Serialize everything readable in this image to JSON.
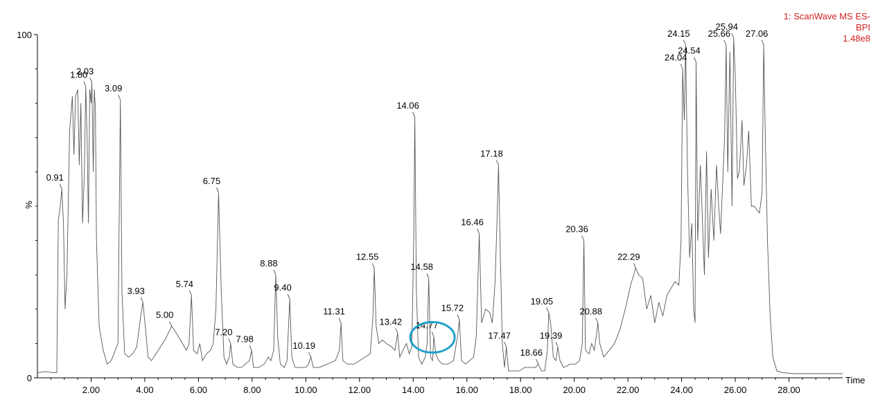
{
  "chart_data": {
    "type": "line",
    "xlabel": "Time",
    "ylabel": "%",
    "xlim": [
      0,
      30
    ],
    "ylim": [
      0,
      100
    ],
    "x_ticks": [
      "2.00",
      "4.00",
      "6.00",
      "8.00",
      "10.00",
      "12.00",
      "14.00",
      "16.00",
      "18.00",
      "20.00",
      "22.00",
      "24.00",
      "26.00",
      "28.00"
    ],
    "y_ticks": [
      "0",
      "100"
    ],
    "annotation": {
      "lines": [
        "1: ScanWave MS ES-",
        "BPI",
        "1.48e8"
      ],
      "color": "#d32020"
    },
    "highlight_circle": {
      "x": 14.77,
      "y": 13,
      "color": "#1fa0c8"
    },
    "peaks": [
      {
        "label": "0.91",
        "x": 0.91,
        "y": 55
      },
      {
        "label": "1.80",
        "x": 1.8,
        "y": 85
      },
      {
        "label": "2.03",
        "x": 2.03,
        "y": 86
      },
      {
        "label": "3.09",
        "x": 3.09,
        "y": 81
      },
      {
        "label": "3.93",
        "x": 3.93,
        "y": 22
      },
      {
        "label": "5.00",
        "x": 5.0,
        "y": 15
      },
      {
        "label": "5.74",
        "x": 5.74,
        "y": 24
      },
      {
        "label": "6.75",
        "x": 6.75,
        "y": 54
      },
      {
        "label": "7.20",
        "x": 7.2,
        "y": 10
      },
      {
        "label": "7.98",
        "x": 7.98,
        "y": 8
      },
      {
        "label": "8.88",
        "x": 8.88,
        "y": 30
      },
      {
        "label": "9.40",
        "x": 9.4,
        "y": 23
      },
      {
        "label": "10.19",
        "x": 10.19,
        "y": 6
      },
      {
        "label": "11.31",
        "x": 11.31,
        "y": 16
      },
      {
        "label": "12.55",
        "x": 12.55,
        "y": 32
      },
      {
        "label": "13.42",
        "x": 13.42,
        "y": 13
      },
      {
        "label": "14.06",
        "x": 14.06,
        "y": 76
      },
      {
        "label": "14.58",
        "x": 14.58,
        "y": 29
      },
      {
        "label": "14.77",
        "x": 14.77,
        "y": 12
      },
      {
        "label": "15.72",
        "x": 15.72,
        "y": 17
      },
      {
        "label": "16.46",
        "x": 16.46,
        "y": 42
      },
      {
        "label": "17.18",
        "x": 17.18,
        "y": 62
      },
      {
        "label": "17.47",
        "x": 17.47,
        "y": 9
      },
      {
        "label": "18.66",
        "x": 18.66,
        "y": 4
      },
      {
        "label": "19.05",
        "x": 19.05,
        "y": 19
      },
      {
        "label": "19.39",
        "x": 19.39,
        "y": 9
      },
      {
        "label": "20.36",
        "x": 20.36,
        "y": 40
      },
      {
        "label": "20.88",
        "x": 20.88,
        "y": 16
      },
      {
        "label": "22.29",
        "x": 22.29,
        "y": 32
      },
      {
        "label": "24.04",
        "x": 24.04,
        "y": 90
      },
      {
        "label": "24.15",
        "x": 24.15,
        "y": 97
      },
      {
        "label": "24.54",
        "x": 24.54,
        "y": 92
      },
      {
        "label": "25.66",
        "x": 25.66,
        "y": 97
      },
      {
        "label": "25.94",
        "x": 25.94,
        "y": 99
      },
      {
        "label": "27.06",
        "x": 27.06,
        "y": 97
      }
    ],
    "trace": [
      [
        0.0,
        1.5
      ],
      [
        0.3,
        1.8
      ],
      [
        0.6,
        1.5
      ],
      [
        0.72,
        1.5
      ],
      [
        0.78,
        46
      ],
      [
        0.85,
        50
      ],
      [
        0.91,
        55
      ],
      [
        0.97,
        45
      ],
      [
        1.03,
        20
      ],
      [
        1.1,
        30
      ],
      [
        1.2,
        72
      ],
      [
        1.3,
        82
      ],
      [
        1.36,
        65
      ],
      [
        1.42,
        82
      ],
      [
        1.5,
        84
      ],
      [
        1.56,
        62
      ],
      [
        1.62,
        80
      ],
      [
        1.68,
        45
      ],
      [
        1.75,
        60
      ],
      [
        1.8,
        85
      ],
      [
        1.85,
        70
      ],
      [
        1.9,
        45
      ],
      [
        1.95,
        84
      ],
      [
        2.0,
        80
      ],
      [
        2.03,
        86
      ],
      [
        2.08,
        60
      ],
      [
        2.12,
        84
      ],
      [
        2.16,
        78
      ],
      [
        2.2,
        40
      ],
      [
        2.3,
        15
      ],
      [
        2.45,
        8
      ],
      [
        2.6,
        4
      ],
      [
        2.75,
        5
      ],
      [
        2.9,
        8
      ],
      [
        3.0,
        10
      ],
      [
        3.09,
        81
      ],
      [
        3.15,
        25
      ],
      [
        3.25,
        7
      ],
      [
        3.4,
        6
      ],
      [
        3.55,
        7
      ],
      [
        3.7,
        9
      ],
      [
        3.85,
        18
      ],
      [
        3.93,
        22
      ],
      [
        4.02,
        15
      ],
      [
        4.12,
        6
      ],
      [
        4.25,
        5
      ],
      [
        4.5,
        8
      ],
      [
        4.75,
        11
      ],
      [
        5.0,
        15
      ],
      [
        5.1,
        14
      ],
      [
        5.25,
        12
      ],
      [
        5.4,
        10
      ],
      [
        5.55,
        8
      ],
      [
        5.65,
        10
      ],
      [
        5.74,
        24
      ],
      [
        5.82,
        8
      ],
      [
        5.95,
        7
      ],
      [
        6.05,
        10
      ],
      [
        6.15,
        5
      ],
      [
        6.3,
        7
      ],
      [
        6.45,
        8
      ],
      [
        6.55,
        10
      ],
      [
        6.65,
        20
      ],
      [
        6.75,
        54
      ],
      [
        6.85,
        25
      ],
      [
        6.95,
        6
      ],
      [
        7.05,
        4
      ],
      [
        7.15,
        6
      ],
      [
        7.2,
        10
      ],
      [
        7.28,
        4
      ],
      [
        7.45,
        3
      ],
      [
        7.6,
        3
      ],
      [
        7.75,
        4
      ],
      [
        7.9,
        5
      ],
      [
        7.98,
        8
      ],
      [
        8.05,
        3
      ],
      [
        8.25,
        3
      ],
      [
        8.45,
        4
      ],
      [
        8.6,
        6
      ],
      [
        8.7,
        5
      ],
      [
        8.8,
        8
      ],
      [
        8.88,
        30
      ],
      [
        8.95,
        12
      ],
      [
        9.05,
        4
      ],
      [
        9.2,
        3
      ],
      [
        9.3,
        5
      ],
      [
        9.4,
        23
      ],
      [
        9.48,
        6
      ],
      [
        9.6,
        3
      ],
      [
        9.8,
        3
      ],
      [
        10.0,
        3
      ],
      [
        10.1,
        4
      ],
      [
        10.19,
        6
      ],
      [
        10.28,
        3
      ],
      [
        10.5,
        3
      ],
      [
        10.8,
        4
      ],
      [
        11.1,
        5
      ],
      [
        11.25,
        8
      ],
      [
        11.31,
        16
      ],
      [
        11.38,
        5
      ],
      [
        11.55,
        4
      ],
      [
        11.8,
        4
      ],
      [
        12.0,
        5
      ],
      [
        12.2,
        6
      ],
      [
        12.4,
        7
      ],
      [
        12.5,
        18
      ],
      [
        12.55,
        32
      ],
      [
        12.62,
        15
      ],
      [
        12.72,
        10
      ],
      [
        12.85,
        11
      ],
      [
        13.0,
        10
      ],
      [
        13.2,
        9
      ],
      [
        13.32,
        8
      ],
      [
        13.42,
        13
      ],
      [
        13.5,
        6
      ],
      [
        13.62,
        8
      ],
      [
        13.75,
        10
      ],
      [
        13.85,
        7
      ],
      [
        13.95,
        9
      ],
      [
        14.02,
        40
      ],
      [
        14.06,
        76
      ],
      [
        14.12,
        25
      ],
      [
        14.2,
        6
      ],
      [
        14.32,
        4
      ],
      [
        14.45,
        6
      ],
      [
        14.52,
        10
      ],
      [
        14.58,
        29
      ],
      [
        14.65,
        6
      ],
      [
        14.72,
        5
      ],
      [
        14.77,
        12
      ],
      [
        14.84,
        7
      ],
      [
        14.95,
        5
      ],
      [
        15.1,
        4
      ],
      [
        15.3,
        4
      ],
      [
        15.5,
        5
      ],
      [
        15.65,
        12
      ],
      [
        15.72,
        17
      ],
      [
        15.8,
        5
      ],
      [
        15.95,
        4
      ],
      [
        16.1,
        5
      ],
      [
        16.25,
        6
      ],
      [
        16.35,
        12
      ],
      [
        16.46,
        42
      ],
      [
        16.55,
        16
      ],
      [
        16.7,
        20
      ],
      [
        16.85,
        19
      ],
      [
        16.95,
        16
      ],
      [
        17.05,
        28
      ],
      [
        17.12,
        45
      ],
      [
        17.18,
        62
      ],
      [
        17.25,
        35
      ],
      [
        17.32,
        10
      ],
      [
        17.4,
        3
      ],
      [
        17.47,
        9
      ],
      [
        17.55,
        2
      ],
      [
        17.75,
        2
      ],
      [
        17.95,
        2
      ],
      [
        18.15,
        3
      ],
      [
        18.35,
        3
      ],
      [
        18.55,
        3
      ],
      [
        18.66,
        4
      ],
      [
        18.78,
        2
      ],
      [
        18.9,
        2
      ],
      [
        19.0,
        8
      ],
      [
        19.05,
        19
      ],
      [
        19.12,
        16
      ],
      [
        19.22,
        6
      ],
      [
        19.32,
        5
      ],
      [
        19.39,
        9
      ],
      [
        19.47,
        5
      ],
      [
        19.6,
        3
      ],
      [
        19.85,
        4
      ],
      [
        20.05,
        4
      ],
      [
        20.2,
        5
      ],
      [
        20.3,
        10
      ],
      [
        20.36,
        40
      ],
      [
        20.42,
        8
      ],
      [
        20.55,
        7
      ],
      [
        20.65,
        10
      ],
      [
        20.75,
        8
      ],
      [
        20.82,
        12
      ],
      [
        20.88,
        16
      ],
      [
        20.95,
        10
      ],
      [
        21.1,
        6
      ],
      [
        21.3,
        8
      ],
      [
        21.5,
        10
      ],
      [
        21.7,
        14
      ],
      [
        21.9,
        20
      ],
      [
        22.1,
        27
      ],
      [
        22.29,
        32
      ],
      [
        22.4,
        30
      ],
      [
        22.55,
        29
      ],
      [
        22.7,
        20
      ],
      [
        22.85,
        24
      ],
      [
        23.0,
        16
      ],
      [
        23.15,
        22
      ],
      [
        23.3,
        18
      ],
      [
        23.45,
        24
      ],
      [
        23.6,
        26
      ],
      [
        23.75,
        28
      ],
      [
        23.9,
        27
      ],
      [
        23.98,
        40
      ],
      [
        24.04,
        90
      ],
      [
        24.1,
        75
      ],
      [
        24.15,
        97
      ],
      [
        24.22,
        60
      ],
      [
        24.3,
        35
      ],
      [
        24.38,
        45
      ],
      [
        24.45,
        20
      ],
      [
        24.5,
        16
      ],
      [
        24.54,
        92
      ],
      [
        24.6,
        40
      ],
      [
        24.7,
        62
      ],
      [
        24.78,
        45
      ],
      [
        24.85,
        30
      ],
      [
        24.93,
        66
      ],
      [
        25.0,
        35
      ],
      [
        25.1,
        55
      ],
      [
        25.2,
        40
      ],
      [
        25.3,
        62
      ],
      [
        25.38,
        50
      ],
      [
        25.45,
        42
      ],
      [
        25.52,
        55
      ],
      [
        25.6,
        70
      ],
      [
        25.66,
        97
      ],
      [
        25.72,
        60
      ],
      [
        25.8,
        95
      ],
      [
        25.88,
        50
      ],
      [
        25.94,
        99
      ],
      [
        26.0,
        88
      ],
      [
        26.08,
        58
      ],
      [
        26.15,
        60
      ],
      [
        26.25,
        75
      ],
      [
        26.32,
        56
      ],
      [
        26.42,
        62
      ],
      [
        26.5,
        72
      ],
      [
        26.6,
        50
      ],
      [
        26.7,
        50
      ],
      [
        26.8,
        49
      ],
      [
        26.9,
        48
      ],
      [
        27.0,
        54
      ],
      [
        27.06,
        97
      ],
      [
        27.12,
        70
      ],
      [
        27.2,
        40
      ],
      [
        27.3,
        18
      ],
      [
        27.4,
        6
      ],
      [
        27.55,
        2
      ],
      [
        27.75,
        1.5
      ],
      [
        28.2,
        1.2
      ],
      [
        28.8,
        1.2
      ],
      [
        29.5,
        1.2
      ],
      [
        30.0,
        1.2
      ]
    ]
  }
}
